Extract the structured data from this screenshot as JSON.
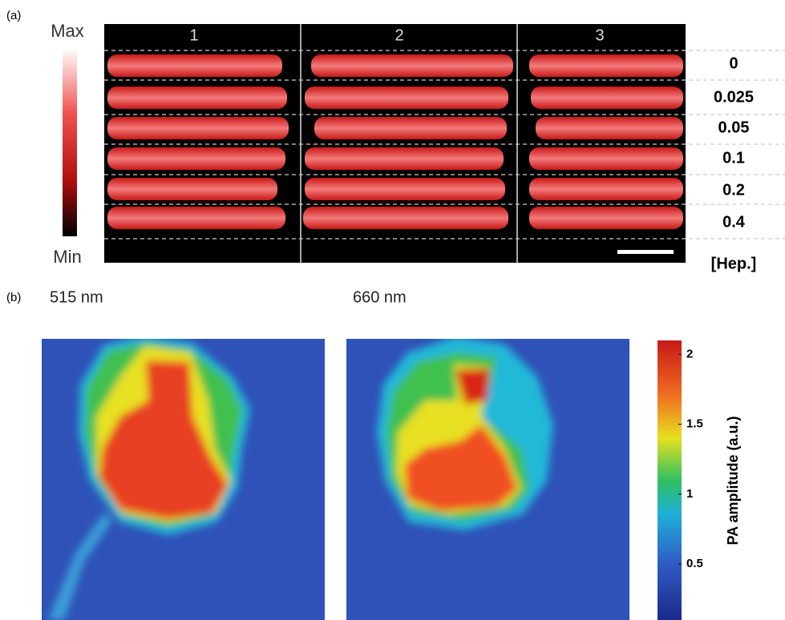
{
  "panel_a": {
    "label": "(a)",
    "colorbar": {
      "max": "Max",
      "min": "Min"
    },
    "columns": [
      "1",
      "2",
      "3"
    ],
    "rows": [
      "0",
      "0.025",
      "0.05",
      "0.1",
      "0.2",
      "0.4"
    ],
    "rows_title": "[Hep.]"
  },
  "panel_b": {
    "label": "(b)",
    "images": [
      "515 nm",
      "660 nm"
    ],
    "colorbar": {
      "title": "PA amplitude (a.u.)",
      "ylim": [
        0.1,
        2.1
      ],
      "ticks": [
        0.5,
        1,
        1.5,
        2
      ]
    }
  }
}
